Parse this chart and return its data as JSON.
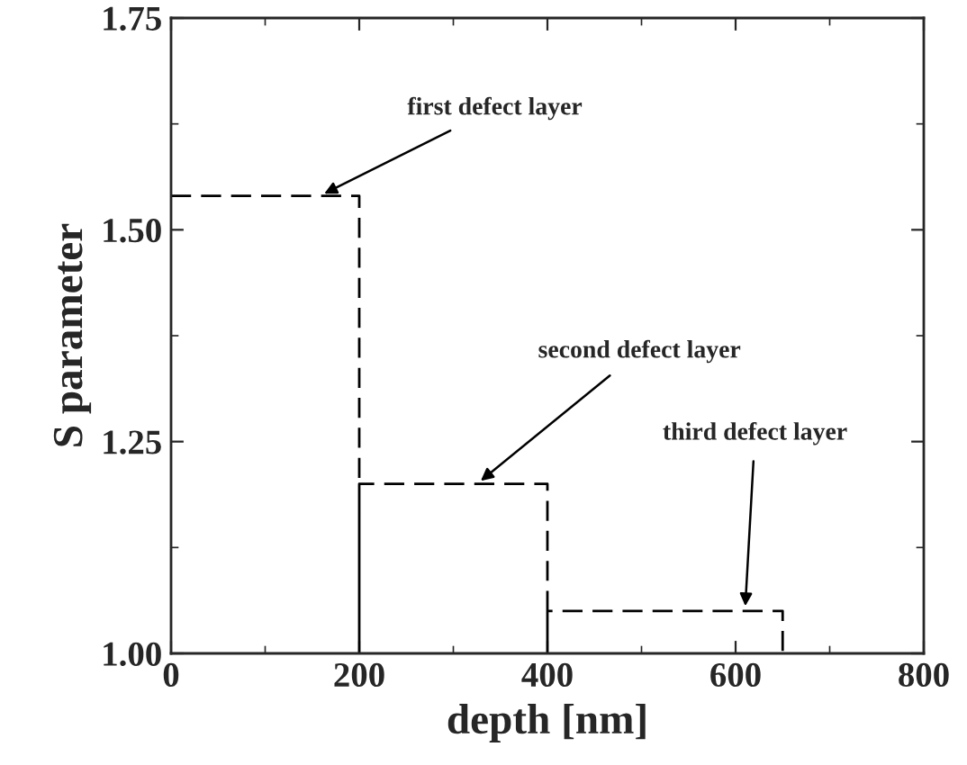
{
  "chart_data": {
    "type": "line",
    "xlabel": "depth [nm]",
    "ylabel": "S parameter",
    "series": [
      {
        "color": "#000000",
        "line_style": "dashed",
        "x": [
          0,
          200,
          200,
          200,
          400,
          400,
          400,
          650,
          650
        ],
        "values": [
          1.54,
          1.54,
          1.0,
          1.2,
          1.2,
          1.0,
          1.05,
          1.05,
          1.0
        ]
      }
    ],
    "xlim": [
      0,
      800
    ],
    "xticks": [
      0,
      200,
      400,
      600,
      800
    ],
    "ylim": [
      1.0,
      1.75
    ],
    "yticks": [
      {
        "value": 1.0,
        "label": "1.00"
      },
      {
        "value": 1.25,
        "label": "1.25"
      },
      {
        "value": 1.5,
        "label": "1.50"
      },
      {
        "value": 1.75,
        "label": "1.75"
      }
    ],
    "annotations": [
      {
        "text": "first defect layer",
        "x": 158,
        "y": 1.54
      },
      {
        "text": "second defect layer",
        "x": 325,
        "y": 1.2
      },
      {
        "text": "third defect layer",
        "x": 610,
        "y": 1.05
      }
    ],
    "grid": false,
    "legend": false,
    "marker": "none"
  }
}
